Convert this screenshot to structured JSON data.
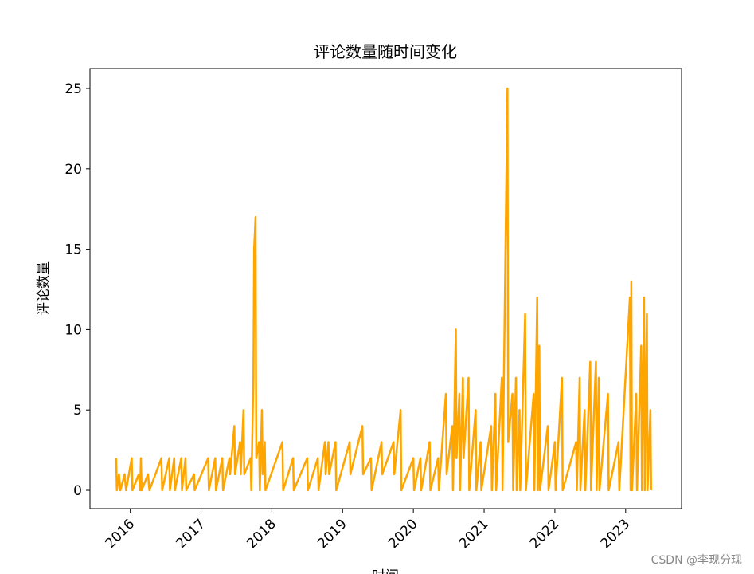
{
  "chart_data": {
    "type": "line",
    "title": "评论数量随时间变化",
    "xlabel": "时间",
    "ylabel": "评论数量",
    "watermark": "CSDN @李现分现",
    "x": [
      2015.8,
      2015.81,
      2015.84,
      2015.86,
      2015.92,
      2015.94,
      2016.02,
      2016.03,
      2016.12,
      2016.14,
      2016.15,
      2016.16,
      2016.25,
      2016.27,
      2016.44,
      2016.45,
      2016.55,
      2016.56,
      2016.62,
      2016.63,
      2016.72,
      2016.73,
      2016.78,
      2016.79,
      2016.9,
      2016.91,
      2017.1,
      2017.11,
      2017.2,
      2017.21,
      2017.3,
      2017.31,
      2017.4,
      2017.41,
      2017.47,
      2017.48,
      2017.55,
      2017.56,
      2017.6,
      2017.61,
      2017.7,
      2017.71,
      2017.74,
      2017.75,
      2017.77,
      2017.78,
      2017.82,
      2017.83,
      2017.86,
      2017.87,
      2017.9,
      2017.91,
      2018.15,
      2018.16,
      2018.3,
      2018.31,
      2018.5,
      2018.51,
      2018.65,
      2018.66,
      2018.75,
      2018.76,
      2018.8,
      2018.81,
      2018.9,
      2018.91,
      2019.1,
      2019.11,
      2019.28,
      2019.29,
      2019.4,
      2019.41,
      2019.55,
      2019.56,
      2019.72,
      2019.73,
      2019.82,
      2019.83,
      2020.0,
      2020.01,
      2020.1,
      2020.11,
      2020.23,
      2020.24,
      2020.35,
      2020.36,
      2020.46,
      2020.47,
      2020.55,
      2020.56,
      2020.6,
      2020.61,
      2020.65,
      2020.66,
      2020.7,
      2020.71,
      2020.78,
      2020.79,
      2020.88,
      2020.89,
      2020.95,
      2020.96,
      2021.1,
      2021.11,
      2021.16,
      2021.17,
      2021.25,
      2021.26,
      2021.33,
      2021.34,
      2021.4,
      2021.41,
      2021.45,
      2021.46,
      2021.5,
      2021.51,
      2021.58,
      2021.59,
      2021.7,
      2021.71,
      2021.75,
      2021.76,
      2021.78,
      2021.79,
      2021.9,
      2021.91,
      2022.0,
      2022.01,
      2022.1,
      2022.11,
      2022.3,
      2022.31,
      2022.35,
      2022.36,
      2022.42,
      2022.43,
      2022.5,
      2022.51,
      2022.58,
      2022.59,
      2022.62,
      2022.63,
      2022.75,
      2022.76,
      2022.9,
      2022.91,
      2023.06,
      2023.07,
      2023.08,
      2023.09,
      2023.15,
      2023.16,
      2023.22,
      2023.23,
      2023.26,
      2023.27,
      2023.3,
      2023.31,
      2023.35,
      2023.36
    ],
    "values": [
      2,
      0,
      1,
      0,
      1,
      0,
      2,
      0,
      1,
      0,
      2,
      0,
      1,
      0,
      2,
      0,
      2,
      0,
      2,
      0,
      2,
      0,
      2,
      0,
      1,
      0,
      2,
      0,
      2,
      0,
      2,
      0,
      2,
      1,
      4,
      1,
      3,
      1,
      5,
      1,
      2,
      0,
      7,
      15,
      17,
      2,
      3,
      0,
      5,
      1,
      3,
      0,
      3,
      0,
      2,
      0,
      2,
      0,
      2,
      0,
      3,
      1,
      3,
      1,
      3,
      0,
      3,
      1,
      4,
      1,
      2,
      0,
      3,
      1,
      3,
      1,
      5,
      0,
      2,
      0,
      2,
      0,
      3,
      0,
      2,
      0,
      6,
      1,
      4,
      0,
      10,
      2,
      6,
      0,
      7,
      2,
      7,
      0,
      5,
      0,
      3,
      0,
      4,
      0,
      6,
      0,
      7,
      0,
      25,
      3,
      6,
      0,
      7,
      0,
      5,
      0,
      11,
      0,
      6,
      0,
      12,
      0,
      9,
      0,
      4,
      0,
      3,
      0,
      7,
      0,
      3,
      0,
      7,
      0,
      5,
      0,
      8,
      0,
      8,
      0,
      7,
      0,
      6,
      0,
      3,
      0,
      12,
      0,
      13,
      0,
      6,
      0,
      9,
      0,
      12,
      0,
      11,
      0,
      5,
      0
    ],
    "color": "#ffa500",
    "xlim": [
      2015.43,
      2023.79
    ],
    "xticks": [
      2016,
      2017,
      2018,
      2019,
      2020,
      2021,
      2022,
      2023
    ],
    "ylim": [
      -1.14,
      26.24
    ],
    "yticks": [
      0,
      5,
      10,
      15,
      20,
      25
    ]
  }
}
